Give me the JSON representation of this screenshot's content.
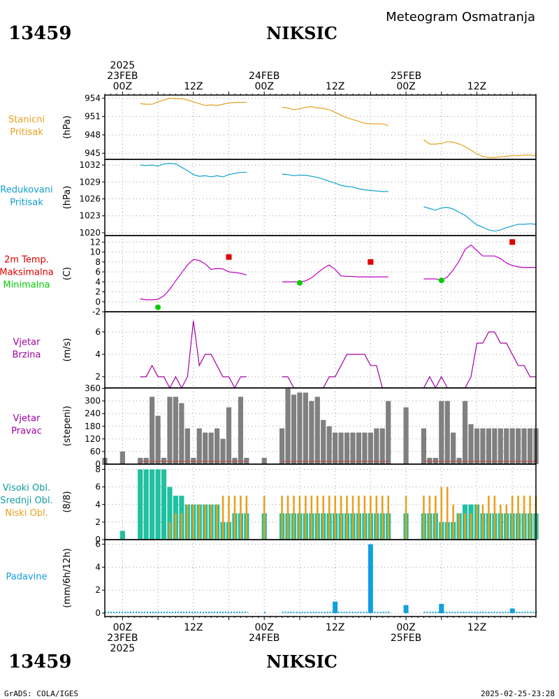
{
  "header": {
    "station_id": "13459",
    "station_name": "NIKSIC",
    "subtitle": "Meteogram Osmatranja",
    "footer_left": "GrADS: COLA/IGES",
    "footer_right": "2025-02-25-23:28"
  },
  "colors": {
    "pressure": "#e8a020",
    "reduced": "#10a0d0",
    "temp": "#c000c0",
    "max": "#e00000",
    "min": "#00cc00",
    "wind": "#a000a0",
    "bars": "#808080",
    "cloud_high": "#20c0a0",
    "cloud_mid": "#20d080",
    "cloud_low": "#e8a020",
    "precip": "#10a0e0",
    "grid": "#999999",
    "label_cloud_high": "#10a0a0",
    "label_cloud_mid": "#10a0a0"
  },
  "time_axis": {
    "top_date_labels": [
      {
        "t": 0,
        "lines": [
          "2025",
          "23FEB",
          "00Z"
        ]
      },
      {
        "t": 12,
        "lines": [
          "12Z"
        ]
      },
      {
        "t": 24,
        "lines": [
          "24FEB",
          "00Z"
        ]
      },
      {
        "t": 36,
        "lines": [
          "12Z"
        ]
      },
      {
        "t": 48,
        "lines": [
          "25FEB",
          "00Z"
        ]
      },
      {
        "t": 60,
        "lines": [
          "12Z"
        ]
      }
    ],
    "bottom_date_labels": [
      {
        "t": 0,
        "lines": [
          "00Z",
          "23FEB",
          "2025"
        ]
      },
      {
        "t": 12,
        "lines": [
          "12Z"
        ]
      },
      {
        "t": 24,
        "lines": [
          "00Z",
          "24FEB"
        ]
      },
      {
        "t": 36,
        "lines": [
          "12Z"
        ]
      },
      {
        "t": 48,
        "lines": [
          "00Z",
          "25FEB"
        ]
      },
      {
        "t": 60,
        "lines": [
          "12Z"
        ]
      }
    ],
    "hour_range": [
      -3,
      70
    ]
  },
  "chart_data": [
    {
      "type": "line",
      "id": "station-pressure",
      "labels": [
        "Stanicni",
        "Pritisak"
      ],
      "ylabel": "(hPa)",
      "yticks": [
        945,
        948,
        951,
        954
      ],
      "ylim": [
        944,
        954.5
      ],
      "series": [
        {
          "x": [
            3,
            4,
            5,
            6,
            7,
            8,
            9,
            10,
            11,
            12,
            13,
            14,
            15,
            16,
            17,
            18,
            19,
            20,
            21
          ],
          "values": [
            953.1,
            953.0,
            953.0,
            953.4,
            953.7,
            954.0,
            953.9,
            953.9,
            953.7,
            953.4,
            953.1,
            952.8,
            952.9,
            952.8,
            953.0,
            953.2,
            953.3,
            953.3,
            953.3
          ]
        },
        {
          "x": [
            27,
            28,
            29,
            30,
            31,
            32,
            33,
            34,
            35,
            36,
            37,
            38,
            39,
            40,
            41,
            42,
            43,
            44,
            45
          ],
          "values": [
            952.5,
            952.4,
            952.1,
            952.3,
            952.5,
            952.6,
            952.4,
            952.3,
            952.1,
            951.7,
            951.2,
            950.8,
            950.5,
            950.2,
            949.9,
            949.8,
            949.8,
            949.8,
            949.5
          ]
        },
        {
          "x": [
            51,
            52,
            53,
            54,
            55,
            56,
            57,
            58,
            59,
            60,
            61,
            62,
            63,
            64,
            65,
            66,
            67,
            68,
            69,
            70
          ],
          "values": [
            947.2,
            946.5,
            946.5,
            946.6,
            946.9,
            946.8,
            946.5,
            946.1,
            945.5,
            944.9,
            944.5,
            944.3,
            944.3,
            944.4,
            944.5,
            944.6,
            944.6,
            944.7,
            944.7,
            944.6
          ]
        }
      ]
    },
    {
      "type": "line",
      "id": "reduced-pressure",
      "labels": [
        "Redukovani",
        "Pritisak"
      ],
      "ylabel": "(hPa)",
      "yticks": [
        1020,
        1023,
        1026,
        1029,
        1032
      ],
      "ylim": [
        1019.5,
        1033
      ],
      "series": [
        {
          "x": [
            3,
            4,
            5,
            6,
            7,
            8,
            9,
            10,
            11,
            12,
            13,
            14,
            15,
            16,
            17,
            18,
            19,
            20,
            21
          ],
          "values": [
            1032.0,
            1031.9,
            1032.0,
            1031.8,
            1032.2,
            1032.3,
            1032.2,
            1031.6,
            1031.0,
            1030.3,
            1030.0,
            1030.1,
            1029.9,
            1030.1,
            1029.9,
            1030.3,
            1030.5,
            1030.7,
            1030.7
          ]
        },
        {
          "x": [
            27,
            28,
            29,
            30,
            31,
            32,
            33,
            34,
            35,
            36,
            37,
            38,
            39,
            40,
            41,
            42,
            43,
            44,
            45
          ],
          "values": [
            1030.4,
            1030.3,
            1030.1,
            1030.2,
            1030.2,
            1030.0,
            1029.8,
            1029.5,
            1029.1,
            1028.8,
            1028.4,
            1028.2,
            1028.1,
            1027.8,
            1027.6,
            1027.5,
            1027.4,
            1027.3,
            1027.3
          ]
        },
        {
          "x": [
            51,
            52,
            53,
            54,
            55,
            56,
            57,
            58,
            59,
            60,
            61,
            62,
            63,
            64,
            65,
            66,
            67,
            68,
            69,
            70
          ],
          "values": [
            1024.6,
            1024.3,
            1024.0,
            1024.4,
            1024.5,
            1024.2,
            1023.6,
            1023.1,
            1022.2,
            1021.4,
            1021.0,
            1020.5,
            1020.3,
            1020.5,
            1020.9,
            1021.2,
            1021.5,
            1021.5,
            1021.6,
            1021.5
          ]
        }
      ]
    },
    {
      "type": "line",
      "id": "temperature",
      "labels": [
        "2m Temp.",
        "Maksimalna",
        "Minimalna"
      ],
      "ylabel": "(C)",
      "yticks": [
        -2,
        0,
        2,
        4,
        6,
        8,
        10,
        12
      ],
      "ylim": [
        -2,
        13.3
      ],
      "series": [
        {
          "x": [
            3,
            4,
            5,
            6,
            7,
            8,
            9,
            10,
            11,
            12,
            13,
            14,
            15,
            16,
            17,
            18,
            19,
            20,
            21
          ],
          "values": [
            0.6,
            0.4,
            0.4,
            0.5,
            1.2,
            2.5,
            4.2,
            5.8,
            7.4,
            8.5,
            8.3,
            7.6,
            6.5,
            6.7,
            6.6,
            6.0,
            5.9,
            5.7,
            5.4
          ]
        },
        {
          "x": [
            27,
            28,
            29,
            30,
            31,
            32,
            33,
            34,
            35,
            36,
            37,
            38,
            39,
            40,
            41,
            42,
            43,
            44,
            45
          ],
          "values": [
            4.0,
            4.0,
            4.0,
            4.0,
            4.2,
            4.8,
            5.8,
            6.7,
            7.4,
            6.5,
            5.2,
            5.1,
            5.1,
            5.0,
            5.0,
            5.0,
            5.0,
            5.0,
            5.0
          ]
        },
        {
          "x": [
            51,
            52,
            53,
            54,
            55,
            56,
            57,
            58,
            59,
            60,
            61,
            62,
            63,
            64,
            65,
            66,
            67,
            68,
            69,
            70
          ],
          "values": [
            4.6,
            4.6,
            4.6,
            4.3,
            5.0,
            6.4,
            8.2,
            10.5,
            11.4,
            10.3,
            9.2,
            9.2,
            9.2,
            8.7,
            7.8,
            7.3,
            7.0,
            6.9,
            6.9,
            6.9
          ]
        }
      ],
      "max_points": [
        {
          "x": 18,
          "value": 9.0
        },
        {
          "x": 42,
          "value": 8.0
        },
        {
          "x": 66,
          "value": 12.0
        }
      ],
      "min_points": [
        {
          "x": 6,
          "value": -1.1
        },
        {
          "x": 30,
          "value": 3.8
        },
        {
          "x": 54,
          "value": 4.3
        }
      ]
    },
    {
      "type": "line",
      "id": "wind-speed",
      "labels": [
        "Vjetar",
        "Brzina"
      ],
      "ylabel": "(m/s)",
      "yticks": [
        2,
        4,
        6
      ],
      "ylim": [
        1,
        7.8
      ],
      "series": [
        {
          "x": [
            3,
            4,
            5,
            6,
            7,
            8,
            9,
            10,
            11,
            12,
            13,
            14,
            15,
            16,
            17,
            18,
            19,
            20,
            21
          ],
          "values": [
            2,
            2,
            3,
            2,
            2,
            1,
            2,
            1,
            2,
            7,
            3,
            4,
            4,
            3,
            2,
            2,
            1,
            2,
            2
          ]
        },
        {
          "x": [
            27,
            28,
            29,
            30,
            31,
            32,
            33,
            34,
            35,
            36,
            37,
            38,
            39,
            40,
            41,
            42,
            43,
            44,
            45
          ],
          "values": [
            2,
            2,
            1,
            1,
            1,
            1,
            1,
            1,
            2,
            2,
            3,
            4,
            4,
            4,
            4,
            3,
            3,
            1,
            1
          ]
        },
        {
          "x": [
            51,
            52,
            53,
            54,
            55,
            56,
            57,
            58,
            59,
            60,
            61,
            62,
            63,
            64,
            65,
            66,
            67,
            68,
            69,
            70
          ],
          "values": [
            1,
            2,
            1,
            2,
            1,
            1,
            1,
            1,
            2,
            5,
            5,
            6,
            6,
            5,
            5,
            4,
            3,
            3,
            2,
            2
          ]
        }
      ]
    },
    {
      "type": "bar",
      "id": "wind-direction",
      "labels": [
        "Vjetar",
        "Pravac"
      ],
      "ylabel": "(stepeni)",
      "yticks": [
        0,
        60,
        120,
        180,
        240,
        300,
        360
      ],
      "ylim": [
        0,
        362
      ],
      "x": [
        -3,
        0,
        3,
        4,
        5,
        6,
        7,
        8,
        9,
        10,
        11,
        12,
        13,
        14,
        15,
        16,
        17,
        18,
        19,
        20,
        21,
        24,
        27,
        28,
        29,
        30,
        31,
        32,
        33,
        34,
        35,
        36,
        37,
        38,
        39,
        40,
        41,
        42,
        43,
        44,
        45,
        48,
        51,
        52,
        53,
        54,
        55,
        56,
        57,
        58,
        59,
        60,
        61,
        62,
        63,
        64,
        65,
        66,
        67,
        68,
        69,
        70
      ],
      "values": [
        30,
        60,
        30,
        30,
        320,
        230,
        30,
        320,
        320,
        290,
        170,
        30,
        170,
        150,
        150,
        170,
        120,
        270,
        30,
        320,
        30,
        30,
        170,
        360,
        330,
        340,
        340,
        300,
        320,
        210,
        180,
        150,
        150,
        150,
        150,
        150,
        150,
        150,
        170,
        170,
        300,
        270,
        170,
        30,
        30,
        300,
        300,
        150,
        30,
        300,
        190,
        170,
        170,
        170,
        170,
        170,
        170,
        170,
        170,
        170,
        170,
        170
      ]
    },
    {
      "type": "bar",
      "id": "clouds",
      "labels": [
        "Visoki Obl.",
        "Srednji Obl.",
        "Niski Obl."
      ],
      "ylabel": "(8/8)",
      "yticks": [
        0,
        2,
        4,
        6,
        8
      ],
      "ylim": [
        0,
        8.6
      ],
      "series": [
        {
          "name": "Visoki Obl.",
          "x": [
            0,
            3,
            4,
            5,
            6,
            7,
            8,
            9,
            10,
            11,
            12,
            13,
            14,
            15,
            16,
            17,
            18,
            19,
            20,
            21,
            24,
            27,
            28,
            29,
            30,
            31,
            32,
            33,
            34,
            35,
            36,
            37,
            38,
            39,
            40,
            41,
            42,
            43,
            44,
            45,
            48,
            51,
            52,
            53,
            54,
            55,
            56,
            57,
            58,
            59,
            60,
            61,
            62,
            63,
            64,
            65,
            66,
            67,
            68,
            69,
            70
          ],
          "values": [
            1,
            8,
            8,
            8,
            8,
            8,
            6,
            5,
            5,
            4,
            4,
            4,
            4,
            4,
            4,
            2,
            2,
            3,
            3,
            3,
            3,
            3,
            3,
            3,
            3,
            3,
            3,
            3,
            3,
            3,
            3,
            3,
            3,
            3,
            3,
            3,
            3,
            3,
            3,
            3,
            3,
            3,
            3,
            3,
            2,
            2,
            2,
            3,
            4,
            4,
            4,
            3,
            3,
            3,
            3,
            3,
            3,
            3,
            3,
            3,
            3
          ]
        },
        {
          "name": "Niski Obl.",
          "x": [
            0,
            3,
            4,
            5,
            6,
            7,
            8,
            9,
            10,
            11,
            12,
            13,
            14,
            15,
            16,
            17,
            18,
            19,
            20,
            21,
            24,
            27,
            28,
            29,
            30,
            31,
            32,
            33,
            34,
            35,
            36,
            37,
            38,
            39,
            40,
            41,
            42,
            43,
            44,
            45,
            48,
            51,
            52,
            53,
            54,
            55,
            56,
            57,
            58,
            59,
            60,
            61,
            62,
            63,
            64,
            65,
            66,
            67,
            68,
            69,
            70
          ],
          "values": [
            0,
            0,
            0,
            0,
            0,
            0,
            2,
            3,
            3,
            4,
            4,
            4,
            4,
            4,
            4,
            5,
            5,
            5,
            5,
            5,
            5,
            5,
            5,
            5,
            5,
            5,
            5,
            5,
            5,
            5,
            5,
            5,
            5,
            5,
            5,
            5,
            5,
            5,
            5,
            5,
            5,
            5,
            5,
            5,
            6,
            6,
            4,
            3,
            3,
            3,
            4,
            4,
            5,
            5,
            4,
            4,
            5,
            5,
            5,
            5,
            5
          ]
        }
      ]
    },
    {
      "type": "bar",
      "id": "precipitation",
      "labels": [
        "Padavine"
      ],
      "ylabel": "(mm/6h/12h)",
      "yticks": [
        0,
        2,
        4,
        6
      ],
      "ylim": [
        -0.3,
        6.4
      ],
      "x": [
        0,
        12,
        18,
        24,
        36,
        42,
        48,
        54,
        66
      ],
      "values": [
        0,
        0,
        0,
        0,
        1.0,
        6.0,
        0.7,
        0.8,
        0.4
      ],
      "trace_ranges": [
        [
          -3,
          21
        ],
        [
          24,
          24
        ],
        [
          27,
          45
        ],
        [
          48,
          48
        ],
        [
          51,
          70
        ]
      ]
    }
  ]
}
